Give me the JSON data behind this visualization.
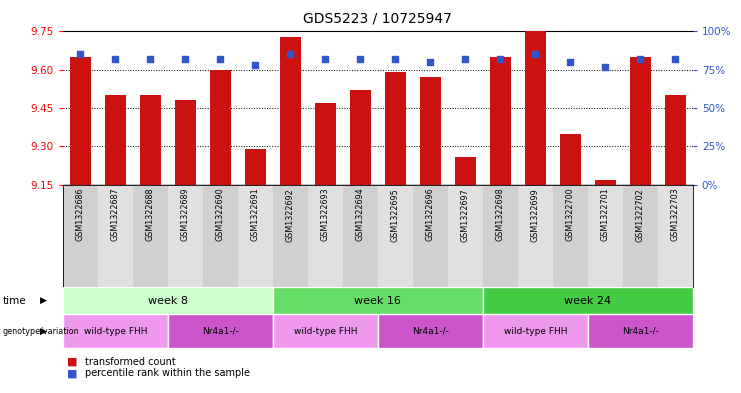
{
  "title": "GDS5223 / 10725947",
  "samples": [
    "GSM1322686",
    "GSM1322687",
    "GSM1322688",
    "GSM1322689",
    "GSM1322690",
    "GSM1322691",
    "GSM1322692",
    "GSM1322693",
    "GSM1322694",
    "GSM1322695",
    "GSM1322696",
    "GSM1322697",
    "GSM1322698",
    "GSM1322699",
    "GSM1322700",
    "GSM1322701",
    "GSM1322702",
    "GSM1322703"
  ],
  "transformed_count": [
    9.65,
    9.5,
    9.5,
    9.48,
    9.6,
    9.29,
    9.73,
    9.47,
    9.52,
    9.59,
    9.57,
    9.26,
    9.65,
    9.75,
    9.35,
    9.17,
    9.65,
    9.5
  ],
  "percentile_rank": [
    85,
    82,
    82,
    82,
    82,
    78,
    85,
    82,
    82,
    82,
    80,
    82,
    82,
    85,
    80,
    77,
    82,
    82
  ],
  "ylim_left": [
    9.15,
    9.75
  ],
  "ylim_right": [
    0,
    100
  ],
  "yticks_left": [
    9.15,
    9.3,
    9.45,
    9.6,
    9.75
  ],
  "yticks_right": [
    0,
    25,
    50,
    75,
    100
  ],
  "bar_color": "#cc1111",
  "dot_color": "#3355cc",
  "time_groups": [
    {
      "label": "week 8",
      "start": 0,
      "end": 5,
      "color": "#ccffcc"
    },
    {
      "label": "week 16",
      "start": 6,
      "end": 11,
      "color": "#66dd66"
    },
    {
      "label": "week 24",
      "start": 12,
      "end": 17,
      "color": "#44cc44"
    }
  ],
  "genotype_groups": [
    {
      "label": "wild-type FHH",
      "start": 0,
      "end": 2,
      "color": "#ee99ee"
    },
    {
      "label": "Nr4a1-/-",
      "start": 3,
      "end": 5,
      "color": "#cc55cc"
    },
    {
      "label": "wild-type FHH",
      "start": 6,
      "end": 8,
      "color": "#ee99ee"
    },
    {
      "label": "Nr4a1-/-",
      "start": 9,
      "end": 11,
      "color": "#cc55cc"
    },
    {
      "label": "wild-type FHH",
      "start": 12,
      "end": 14,
      "color": "#ee99ee"
    },
    {
      "label": "Nr4a1-/-",
      "start": 15,
      "end": 17,
      "color": "#cc55cc"
    }
  ],
  "legend_items": [
    {
      "label": "transformed count",
      "color": "#cc1111"
    },
    {
      "label": "percentile rank within the sample",
      "color": "#3355cc"
    }
  ],
  "grid_yticks": [
    9.3,
    9.45,
    9.6
  ]
}
